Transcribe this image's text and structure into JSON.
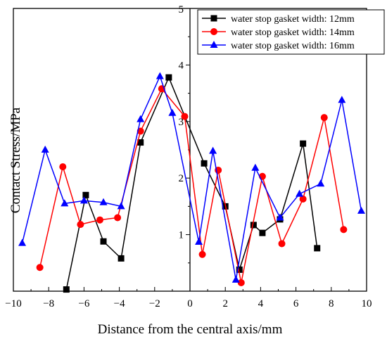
{
  "chart_data": {
    "type": "line",
    "xlabel": "Distance from the central axis/mm",
    "ylabel": "Contact Stress/MPa",
    "xlim": [
      -10,
      10
    ],
    "ylim": [
      0,
      5
    ],
    "x_ticks": [
      "−10",
      "−8",
      "−6",
      "−4",
      "−2",
      "0",
      "2",
      "4",
      "6",
      "8",
      "10"
    ],
    "y_ticks": [
      "1",
      "2",
      "3",
      "4",
      "5"
    ],
    "legend_position": "top-right",
    "series": [
      {
        "name": "water stop gasket width: 12mm",
        "color": "#000000",
        "marker": "square",
        "x": [
          -7.0,
          -5.9,
          -4.9,
          -3.9,
          -2.8,
          -1.2,
          0.8,
          2.0,
          2.8,
          3.6,
          4.1,
          5.1,
          6.4,
          7.2
        ],
        "y": [
          0.03,
          1.7,
          0.88,
          0.58,
          2.63,
          3.78,
          2.26,
          1.5,
          0.38,
          1.17,
          1.03,
          1.27,
          2.61,
          0.76
        ]
      },
      {
        "name": "water stop gasket width: 14mm",
        "color": "#ff0000",
        "marker": "circle",
        "x": [
          -8.5,
          -7.2,
          -6.2,
          -5.1,
          -4.1,
          -2.8,
          -1.6,
          -0.3,
          0.7,
          1.6,
          2.9,
          4.1,
          5.2,
          6.4,
          7.6,
          8.7
        ],
        "y": [
          0.42,
          2.2,
          1.18,
          1.26,
          1.3,
          2.83,
          3.58,
          3.09,
          0.65,
          2.14,
          0.15,
          2.03,
          0.84,
          1.63,
          3.07,
          1.09
        ]
      },
      {
        "name": "water stop gasket width: 16mm",
        "color": "#0000ff",
        "marker": "triangle",
        "x": [
          -9.5,
          -8.2,
          -7.1,
          -6.0,
          -4.9,
          -3.9,
          -2.8,
          -1.7,
          -1.0,
          0.5,
          1.3,
          2.6,
          3.7,
          5.1,
          6.2,
          7.4,
          8.6,
          9.7
        ],
        "y": [
          0.85,
          2.5,
          1.55,
          1.6,
          1.57,
          1.5,
          3.04,
          3.8,
          3.15,
          0.87,
          2.48,
          0.2,
          2.18,
          1.3,
          1.72,
          1.9,
          3.38,
          1.42
        ]
      }
    ]
  }
}
